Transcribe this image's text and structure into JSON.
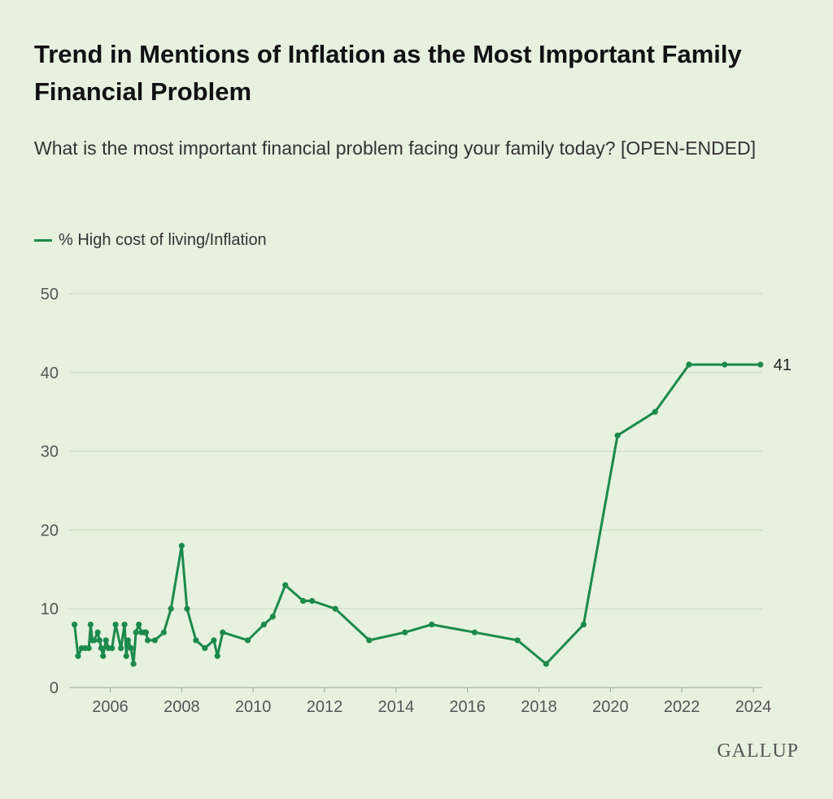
{
  "title": "Trend in Mentions of Inflation as the Most Important Family Financial Problem",
  "subtitle": "What is the most important financial problem facing your family today? [OPEN-ENDED]",
  "logo_text": "GALLUP",
  "colors": {
    "series": "#1b8a4b",
    "background": "#e6f1df",
    "grid": "#c9d8c1"
  },
  "chart_data": {
    "type": "line",
    "title": "Trend in Mentions of Inflation as the Most Important Family Financial Problem",
    "xlabel": "",
    "ylabel": "",
    "xlim": [
      2004.85,
      2024.25
    ],
    "ylim": [
      0,
      50
    ],
    "y_ticks": [
      "0",
      "10",
      "20",
      "30",
      "40",
      "50"
    ],
    "x_ticks": [
      "2006",
      "2008",
      "2010",
      "2012",
      "2014",
      "2016",
      "2018",
      "2020",
      "2022",
      "2024"
    ],
    "x_tick_values": [
      2006,
      2008,
      2010,
      2012,
      2014,
      2016,
      2018,
      2020,
      2022,
      2024
    ],
    "grid": true,
    "legend_position": "top-left",
    "end_label": "41",
    "series": [
      {
        "name": "% High cost of living/Inflation",
        "x": [
          2005.0,
          2005.1,
          2005.2,
          2005.3,
          2005.4,
          2005.45,
          2005.5,
          2005.55,
          2005.65,
          2005.7,
          2005.75,
          2005.8,
          2005.88,
          2005.95,
          2006.05,
          2006.15,
          2006.3,
          2006.4,
          2006.45,
          2006.5,
          2006.58,
          2006.65,
          2006.72,
          2006.8,
          2006.87,
          2006.95,
          2007.0,
          2007.05,
          2007.25,
          2007.5,
          2007.7,
          2008.0,
          2008.15,
          2008.4,
          2008.65,
          2008.9,
          2009.0,
          2009.15,
          2009.85,
          2010.3,
          2010.55,
          2010.9,
          2011.4,
          2011.65,
          2012.3,
          2013.25,
          2014.25,
          2015.0,
          2016.2,
          2017.4,
          2018.2,
          2019.25,
          2020.2,
          2021.25,
          2022.2,
          2023.2,
          2024.2
        ],
        "y": [
          8,
          4,
          5,
          5,
          5,
          8,
          6,
          6,
          7,
          6,
          5,
          4,
          6,
          5,
          5,
          8,
          5,
          8,
          4,
          6,
          5,
          3,
          7,
          8,
          7,
          7,
          7,
          6,
          6,
          7,
          10,
          18,
          10,
          6,
          5,
          6,
          4,
          7,
          6,
          8,
          9,
          13,
          11,
          11,
          10,
          6,
          7,
          8,
          7,
          6,
          3,
          8,
          32,
          35,
          41,
          41,
          41
        ]
      }
    ]
  }
}
